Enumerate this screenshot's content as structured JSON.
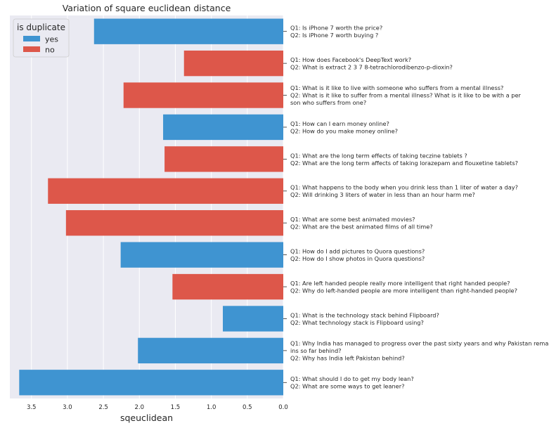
{
  "chart_data": {
    "type": "bar",
    "orientation": "horizontal",
    "title": "Variation of square euclidean distance",
    "xlabel": "sqeuclidean",
    "ylabel": "",
    "xlim": [
      3.8,
      0
    ],
    "x_inverted": true,
    "xticks": [
      "3.5",
      "3.0",
      "2.5",
      "2.0",
      "1.5",
      "1.0",
      "0.5",
      "0.0"
    ],
    "xtick_values": [
      3.5,
      3.0,
      2.5,
      2.0,
      1.5,
      1.0,
      0.5,
      0.0
    ],
    "y_axis_side": "right",
    "grid": true,
    "legend": {
      "title": "is duplicate",
      "placement": "top-left",
      "entries": [
        {
          "label": "yes",
          "color": "#3f94d1"
        },
        {
          "label": "no",
          "color": "#dd574a"
        }
      ]
    },
    "colors": {
      "yes": "#3f94d1",
      "no": "#dd574a",
      "background": "#eaeaf2"
    },
    "bars": [
      {
        "label_lines": [
          "Q1: Is iPhone 7 worth the price?",
          "Q2: Is iPhone 7 worth buying ?"
        ],
        "value": 2.63,
        "duplicate": "yes"
      },
      {
        "label_lines": [
          "Q1: How does Facebook's DeepText work?",
          "Q2: What is extract 2 3 7 8-tetrachlorodibenzo-p-dioxin?"
        ],
        "value": 1.38,
        "duplicate": "no"
      },
      {
        "label_lines": [
          "Q1: What is it like to live with someone who suffers from a mental illness?",
          "Q2: What is it like to suffer from a mental illness? What is it like to be with a per",
          "son who suffers from one?"
        ],
        "value": 2.22,
        "duplicate": "no"
      },
      {
        "label_lines": [
          "Q1: How can I earn money online?",
          "Q2: How do you make money online?"
        ],
        "value": 1.67,
        "duplicate": "yes"
      },
      {
        "label_lines": [
          "Q1: What are the long term effects of taking teczine tablets ?",
          "Q2: What are the long term affects of taking lorazepam and flouxetine tablets?"
        ],
        "value": 1.65,
        "duplicate": "no"
      },
      {
        "label_lines": [
          "Q1: What happens to the body when you drink less than 1 liter of water a day?",
          "Q2: Will drinking 3 liters of water in less than an hour harm me?"
        ],
        "value": 3.27,
        "duplicate": "no"
      },
      {
        "label_lines": [
          "Q1: What are some best animated movies?",
          "Q2: What are the best animated films of all time?"
        ],
        "value": 3.02,
        "duplicate": "no"
      },
      {
        "label_lines": [
          "Q1: How do I add pictures to Quora questions?",
          "Q2: How do I show photos in Quora questions?"
        ],
        "value": 2.26,
        "duplicate": "yes"
      },
      {
        "label_lines": [
          "Q1: Are left handed people really more intelligent that right handed people?",
          "Q2: Why do left-handed people are more intelligent than right-handed people?"
        ],
        "value": 1.54,
        "duplicate": "no"
      },
      {
        "label_lines": [
          "Q1: What is the technology stack behind Flipboard?",
          "Q2: What technology stack is Flipboard using?"
        ],
        "value": 0.84,
        "duplicate": "yes"
      },
      {
        "label_lines": [
          "Q1: Why India has managed to progress over the past sixty years and why Pakistan rema",
          "ins so far behind?",
          "Q2: Why has India left Pakistan behind?"
        ],
        "value": 2.02,
        "duplicate": "yes"
      },
      {
        "label_lines": [
          "Q1: What should I do to get my body lean?",
          "Q2: What are some ways to get leaner?"
        ],
        "value": 3.67,
        "duplicate": "yes"
      }
    ]
  }
}
